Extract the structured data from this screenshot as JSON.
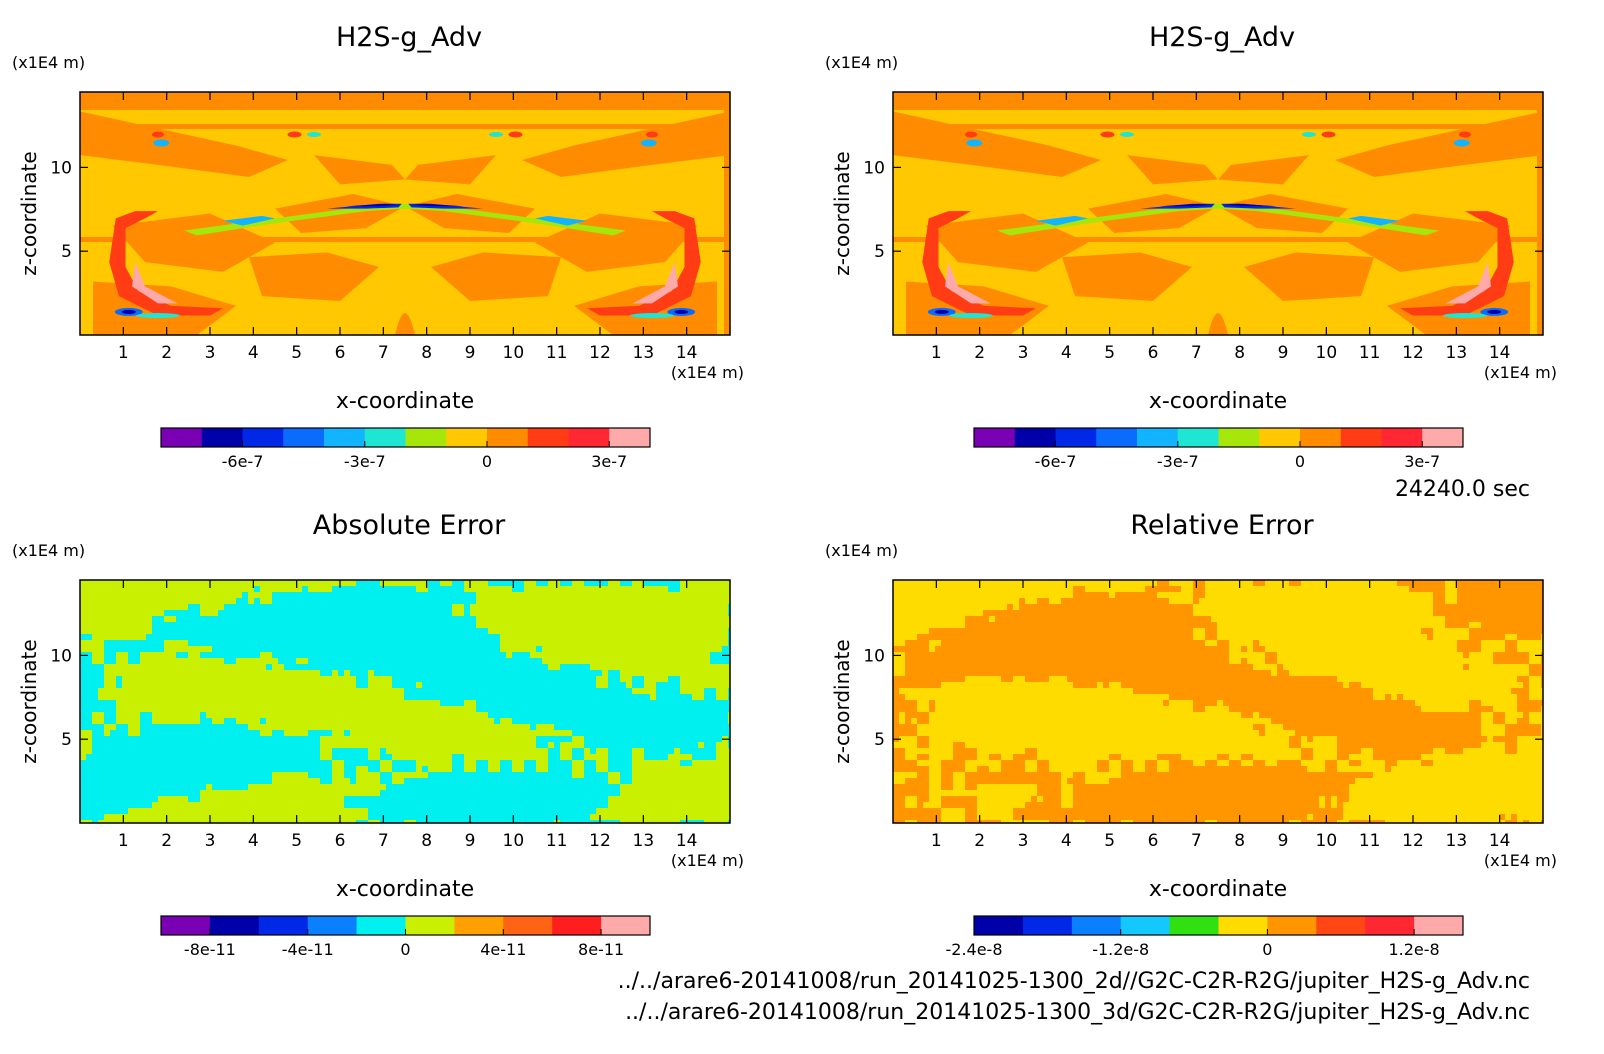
{
  "footer": {
    "time": "24240.0 sec",
    "file_2d": "../../arare6-20141008/run_20141025-1300_2d//G2C-C2R-R2G/jupiter_H2S-g_Adv.nc",
    "file_3d": "../../arare6-20141008/run_20141025-1300_3d/G2C-C2R-R2G/jupiter_H2S-g_Adv.nc"
  },
  "chart_data": [
    {
      "type": "heatmap",
      "title": "H2S-g_Adv",
      "xlabel": "x-coordinate",
      "ylabel": "z-coordinate",
      "x_unit": "(x1E4 m)",
      "y_unit": "(x1E4 m)",
      "xlim": [
        0,
        15
      ],
      "ylim": [
        0,
        14.5
      ],
      "x_ticks": [
        1,
        2,
        3,
        4,
        5,
        6,
        7,
        8,
        9,
        10,
        11,
        12,
        13,
        14
      ],
      "y_ticks": [
        5,
        10
      ],
      "colorbar": {
        "colors": [
          "#7a00b4",
          "#0000a8",
          "#0028e6",
          "#0a6cff",
          "#12b4ff",
          "#1ee6d2",
          "#a6e60a",
          "#ffc800",
          "#ff8c00",
          "#ff3c14",
          "#ff2832",
          "#ffaaaa"
        ],
        "tick_labels": [
          "-6e-7",
          "-3e-7",
          "0",
          "3e-7"
        ],
        "tick_edges": [
          2,
          5,
          8,
          11
        ]
      },
      "field": "h2s",
      "bg_color": "#ffc800",
      "alt_color": "#ff8c00"
    },
    {
      "type": "heatmap",
      "title": "H2S-g_Adv",
      "xlabel": "x-coordinate",
      "ylabel": "z-coordinate",
      "x_unit": "(x1E4 m)",
      "y_unit": "(x1E4 m)",
      "xlim": [
        0,
        15
      ],
      "ylim": [
        0,
        14.5
      ],
      "x_ticks": [
        1,
        2,
        3,
        4,
        5,
        6,
        7,
        8,
        9,
        10,
        11,
        12,
        13,
        14
      ],
      "y_ticks": [
        5,
        10
      ],
      "colorbar": {
        "colors": [
          "#7a00b4",
          "#0000a8",
          "#0028e6",
          "#0a6cff",
          "#12b4ff",
          "#1ee6d2",
          "#a6e60a",
          "#ffc800",
          "#ff8c00",
          "#ff3c14",
          "#ff2832",
          "#ffaaaa"
        ],
        "tick_labels": [
          "-6e-7",
          "-3e-7",
          "0",
          "3e-7"
        ],
        "tick_edges": [
          2,
          5,
          8,
          11
        ]
      },
      "field": "h2s",
      "bg_color": "#ffc800",
      "alt_color": "#ff8c00"
    },
    {
      "type": "heatmap",
      "title": "Absolute Error",
      "xlabel": "x-coordinate",
      "ylabel": "z-coordinate",
      "x_unit": "(x1E4 m)",
      "y_unit": "(x1E4 m)",
      "xlim": [
        0,
        15
      ],
      "ylim": [
        0,
        14.5
      ],
      "x_ticks": [
        1,
        2,
        3,
        4,
        5,
        6,
        7,
        8,
        9,
        10,
        11,
        12,
        13,
        14
      ],
      "y_ticks": [
        5,
        10
      ],
      "colorbar": {
        "colors": [
          "#7a00b4",
          "#0000a8",
          "#0028e6",
          "#0a80ff",
          "#00f0f0",
          "#c8f000",
          "#ffa000",
          "#ff6414",
          "#ff1e1e",
          "#ffaaaa"
        ],
        "tick_labels": [
          "-8e-11",
          "-4e-11",
          "0",
          "4e-11",
          "8e-11"
        ],
        "tick_edges": [
          1,
          3,
          5,
          7,
          9
        ]
      },
      "field": "noise",
      "bg_color": "#00f0f0",
      "alt_color": "#c8f000"
    },
    {
      "type": "heatmap",
      "title": "Relative Error",
      "xlabel": "x-coordinate",
      "ylabel": "z-coordinate",
      "x_unit": "(x1E4 m)",
      "y_unit": "(x1E4 m)",
      "xlim": [
        0,
        15
      ],
      "ylim": [
        0,
        14.5
      ],
      "x_ticks": [
        1,
        2,
        3,
        4,
        5,
        6,
        7,
        8,
        9,
        10,
        11,
        12,
        13,
        14
      ],
      "y_ticks": [
        5,
        10
      ],
      "colorbar": {
        "colors": [
          "#0000a8",
          "#0028e6",
          "#0a80ff",
          "#12c8ff",
          "#30e010",
          "#ffdc00",
          "#ff9600",
          "#ff4614",
          "#ff2832",
          "#ffaaaa"
        ],
        "tick_labels": [
          "-2.4e-8",
          "-1.2e-8",
          "0",
          "1.2e-8"
        ],
        "tick_edges": [
          0,
          3,
          6,
          9
        ]
      },
      "field": "noise",
      "bg_color": "#ffdc00",
      "alt_color": "#ff9600"
    }
  ]
}
